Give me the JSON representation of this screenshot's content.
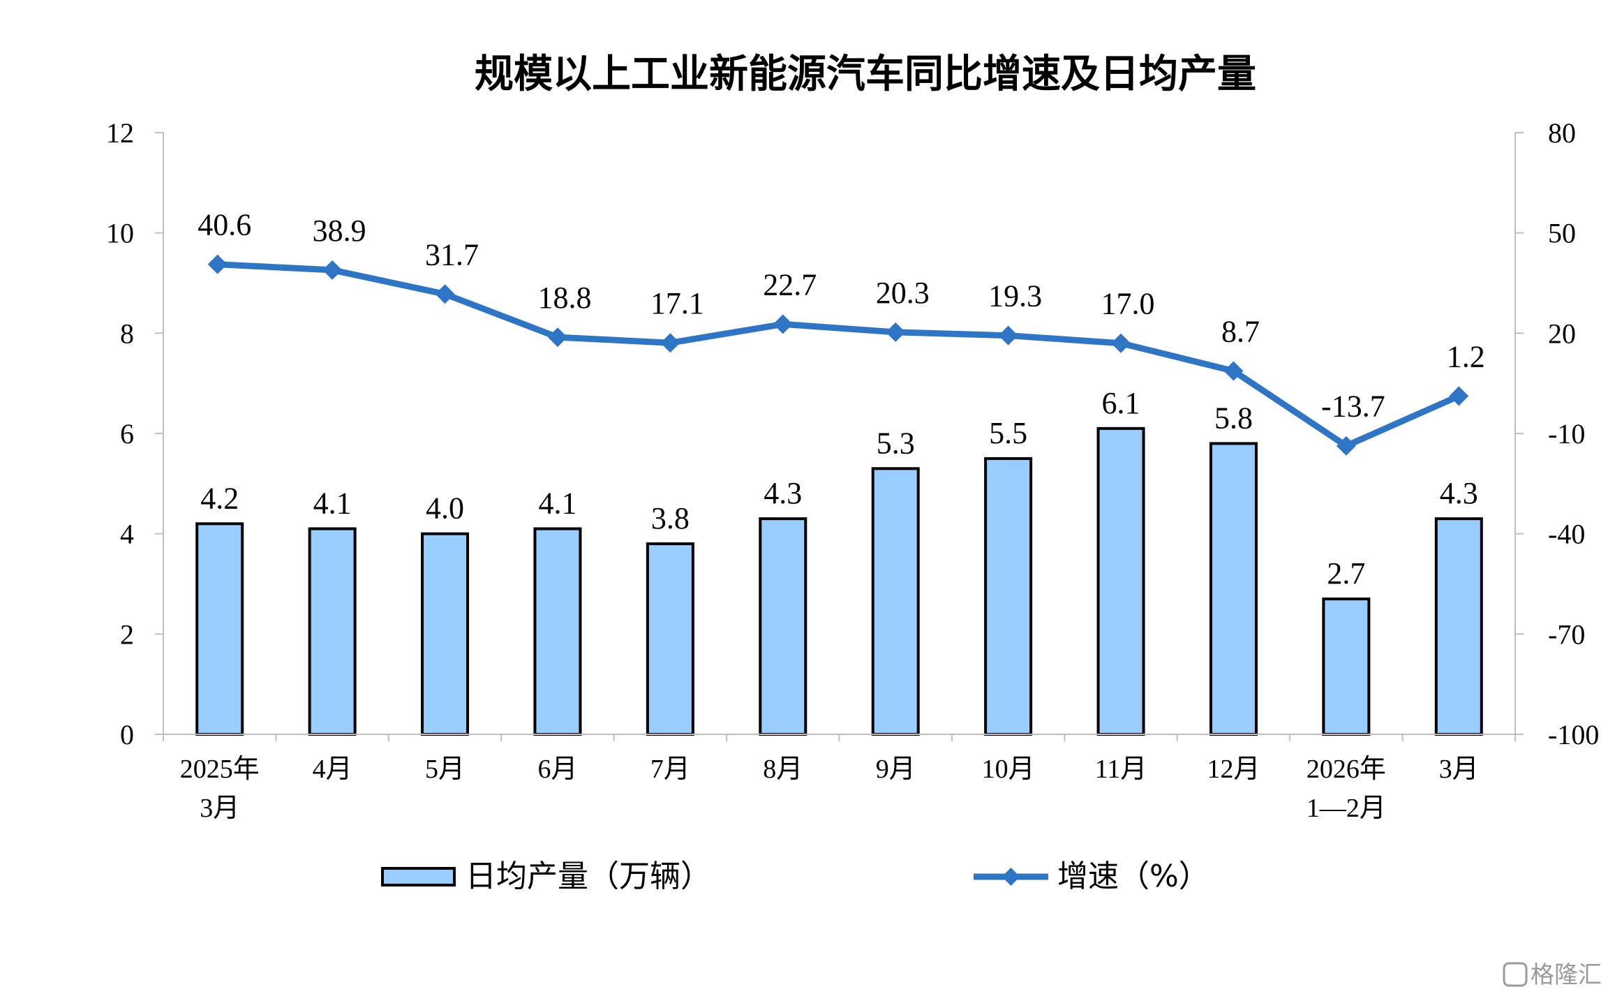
{
  "chart_data": {
    "type": "bar",
    "title": "规模以上工业新能源汽车同比增速及日均产量",
    "categories": [
      [
        "2025年",
        "3月"
      ],
      [
        "4月"
      ],
      [
        "5月"
      ],
      [
        "6月"
      ],
      [
        "7月"
      ],
      [
        "8月"
      ],
      [
        "9月"
      ],
      [
        "10月"
      ],
      [
        "11月"
      ],
      [
        "12月"
      ],
      [
        "2026年",
        "1—2月"
      ],
      [
        "3月"
      ]
    ],
    "series": [
      {
        "name": "日均产量（万辆）",
        "type": "bar",
        "axis": "left",
        "color": "#99ccff",
        "values": [
          4.2,
          4.1,
          4.0,
          4.1,
          3.8,
          4.3,
          5.3,
          5.5,
          6.1,
          5.8,
          2.7,
          4.3
        ],
        "labels": [
          "4.2",
          "4.1",
          "4.0",
          "4.1",
          "3.8",
          "4.3",
          "5.3",
          "5.5",
          "6.1",
          "5.8",
          "2.7",
          "4.3"
        ]
      },
      {
        "name": "增速（%）",
        "type": "line",
        "axis": "right",
        "color": "#2e75c6",
        "marker": "diamond",
        "values": [
          40.6,
          38.9,
          31.7,
          18.8,
          17.1,
          22.7,
          20.3,
          19.3,
          17.0,
          8.7,
          -13.7,
          1.2
        ],
        "labels": [
          "40.6",
          "38.9",
          "31.7",
          "18.8",
          "17.1",
          "22.7",
          "20.3",
          "19.3",
          "17.0",
          "8.7",
          "-13.7",
          "1.2"
        ]
      }
    ],
    "y_left": {
      "lim": [
        0,
        12
      ],
      "ticks": [
        "0",
        "2",
        "4",
        "6",
        "8",
        "10",
        "12"
      ]
    },
    "y_right": {
      "lim": [
        -100,
        80
      ],
      "ticks": [
        "-100",
        "-70",
        "-40",
        "-10",
        "20",
        "50",
        "80"
      ]
    },
    "grid": false,
    "legend": "bottom"
  },
  "watermark": "格隆汇"
}
